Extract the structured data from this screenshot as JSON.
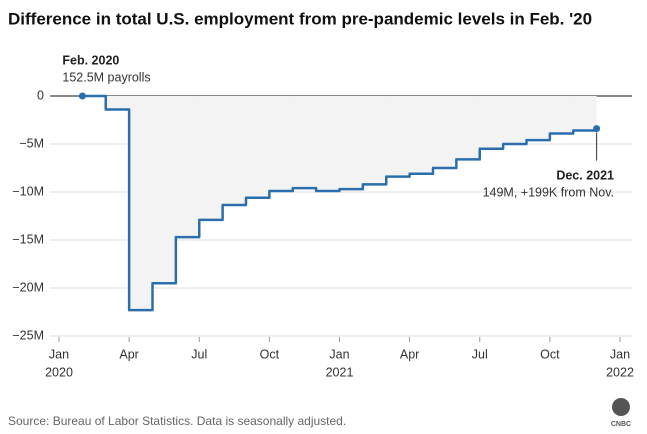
{
  "chart_data": {
    "type": "step",
    "title": "Difference in total U.S. employment from pre-pandemic levels in Feb. '20",
    "source": "Source: Bureau of Labor Statistics. Data is seasonally adjusted.",
    "logo": "CNBC",
    "annotations": [
      {
        "title": "Feb. 2020",
        "text": "152.5M payrolls"
      },
      {
        "title": "Dec. 2021",
        "text": "149M, +199K from Nov."
      }
    ],
    "x": [
      "2020-02",
      "2020-03",
      "2020-04",
      "2020-05",
      "2020-06",
      "2020-07",
      "2020-08",
      "2020-09",
      "2020-10",
      "2020-11",
      "2020-12",
      "2021-01",
      "2021-02",
      "2021-03",
      "2021-04",
      "2021-05",
      "2021-06",
      "2021-07",
      "2021-08",
      "2021-09",
      "2021-10",
      "2021-11",
      "2021-12"
    ],
    "series": [
      {
        "color": "#2a6ead",
        "area_color": "#f3f3f3",
        "values": [
          0,
          -1.4,
          -22.3,
          -19.5,
          -14.7,
          -12.9,
          -11.35,
          -10.6,
          -9.9,
          -9.6,
          -9.9,
          -9.7,
          -9.2,
          -8.4,
          -8.1,
          -7.5,
          -6.6,
          -5.5,
          -5.0,
          -4.6,
          -3.9,
          -3.6,
          -3.4
        ]
      }
    ],
    "xlim": [
      "2020-01",
      "2022-01"
    ],
    "xticks": [
      {
        "value": "2020-01",
        "label": "Jan",
        "year": "2020"
      },
      {
        "value": "2020-04",
        "label": "Apr"
      },
      {
        "value": "2020-07",
        "label": "Jul"
      },
      {
        "value": "2020-10",
        "label": "Oct"
      },
      {
        "value": "2021-01",
        "label": "Jan",
        "year": "2021"
      },
      {
        "value": "2021-04",
        "label": "Apr"
      },
      {
        "value": "2021-07",
        "label": "Jul"
      },
      {
        "value": "2021-10",
        "label": "Oct"
      },
      {
        "value": "2022-01",
        "label": "Jan",
        "year": "2022"
      }
    ],
    "ylim": [
      -25,
      0
    ],
    "yticks": [
      0,
      {
        "value": -5,
        "label": "−5M"
      },
      {
        "value": -10,
        "label": "−10M"
      },
      {
        "value": -15,
        "label": "−15M"
      },
      {
        "value": -20,
        "label": "−20M"
      },
      {
        "value": -25,
        "label": "−25M"
      }
    ],
    "grid": true
  }
}
